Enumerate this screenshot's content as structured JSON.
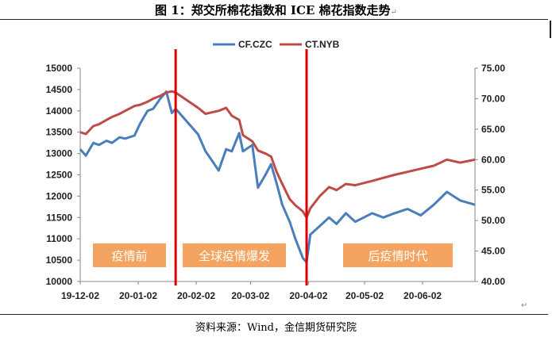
{
  "title": "图 1：郑交所棉花指数和 ICE 棉花指数走势",
  "mark": "↵",
  "source": "资料来源：Wind，金信期货研究院",
  "end_mark": "↵",
  "phases": [
    "疫情前",
    "全球疫情爆发",
    "后疫情时代"
  ],
  "colors": {
    "czc": "#4a7ebb",
    "nyb": "#be4b48",
    "phase_box": "#f4a460",
    "divider": "#e00000"
  },
  "chart_data": {
    "type": "line",
    "x_ticks": [
      "19-12-02",
      "20-01-02",
      "20-02-02",
      "20-03-02",
      "20-04-02",
      "20-05-02",
      "20-06-02"
    ],
    "y_left": {
      "min": 10000,
      "max": 15000,
      "step": 500,
      "ticks": [
        "15000",
        "14500",
        "14000",
        "13500",
        "13000",
        "12500",
        "12000",
        "11500",
        "11000",
        "10500",
        "10000"
      ]
    },
    "y_right": {
      "min": 40,
      "max": 75,
      "step": 5,
      "ticks": [
        "75.00",
        "70.00",
        "65.00",
        "60.00",
        "55.00",
        "50.00",
        "45.00",
        "40.00"
      ]
    },
    "dividers": [
      "2020-01-22",
      "2020-04-01"
    ],
    "series": [
      {
        "name": "CF.CZC",
        "axis": "left",
        "points": [
          [
            "2019-12-02",
            13100
          ],
          [
            "2019-12-05",
            12950
          ],
          [
            "2019-12-09",
            13250
          ],
          [
            "2019-12-12",
            13200
          ],
          [
            "2019-12-16",
            13300
          ],
          [
            "2019-12-19",
            13250
          ],
          [
            "2019-12-23",
            13380
          ],
          [
            "2019-12-26",
            13350
          ],
          [
            "2019-12-31",
            13420
          ],
          [
            "2020-01-03",
            13700
          ],
          [
            "2020-01-07",
            14000
          ],
          [
            "2020-01-10",
            14050
          ],
          [
            "2020-01-14",
            14300
          ],
          [
            "2020-01-17",
            14450
          ],
          [
            "2020-01-20",
            13950
          ],
          [
            "2020-01-22",
            14050
          ],
          [
            "2020-02-03",
            13450
          ],
          [
            "2020-02-07",
            13050
          ],
          [
            "2020-02-11",
            12800
          ],
          [
            "2020-02-14",
            12600
          ],
          [
            "2020-02-18",
            13100
          ],
          [
            "2020-02-21",
            13050
          ],
          [
            "2020-02-25",
            13480
          ],
          [
            "2020-02-27",
            13050
          ],
          [
            "2020-03-03",
            13200
          ],
          [
            "2020-03-06",
            12200
          ],
          [
            "2020-03-10",
            12500
          ],
          [
            "2020-03-13",
            12750
          ],
          [
            "2020-03-16",
            12300
          ],
          [
            "2020-03-19",
            11800
          ],
          [
            "2020-03-23",
            11400
          ],
          [
            "2020-03-26",
            11000
          ],
          [
            "2020-03-30",
            10550
          ],
          [
            "2020-04-01",
            10450
          ],
          [
            "2020-04-03",
            11100
          ],
          [
            "2020-04-08",
            11300
          ],
          [
            "2020-04-13",
            11500
          ],
          [
            "2020-04-17",
            11350
          ],
          [
            "2020-04-22",
            11600
          ],
          [
            "2020-04-27",
            11400
          ],
          [
            "2020-05-06",
            11600
          ],
          [
            "2020-05-12",
            11500
          ],
          [
            "2020-05-18",
            11600
          ],
          [
            "2020-05-25",
            11700
          ],
          [
            "2020-06-01",
            11550
          ],
          [
            "2020-06-08",
            11800
          ],
          [
            "2020-06-15",
            12100
          ],
          [
            "2020-06-22",
            11900
          ],
          [
            "2020-06-30",
            11800
          ]
        ]
      },
      {
        "name": "CT.NYB",
        "axis": "right",
        "points": [
          [
            "2019-12-02",
            64.5
          ],
          [
            "2019-12-05",
            64.2
          ],
          [
            "2019-12-09",
            65.5
          ],
          [
            "2019-12-12",
            65.8
          ],
          [
            "2019-12-16",
            66.5
          ],
          [
            "2019-12-19",
            67.0
          ],
          [
            "2019-12-23",
            67.5
          ],
          [
            "2019-12-26",
            68.0
          ],
          [
            "2019-12-31",
            68.8
          ],
          [
            "2020-01-03",
            69.0
          ],
          [
            "2020-01-07",
            69.5
          ],
          [
            "2020-01-10",
            70.0
          ],
          [
            "2020-01-14",
            70.5
          ],
          [
            "2020-01-17",
            71.0
          ],
          [
            "2020-01-20",
            71.2
          ],
          [
            "2020-01-22",
            71.0
          ],
          [
            "2020-02-03",
            68.5
          ],
          [
            "2020-02-07",
            67.5
          ],
          [
            "2020-02-11",
            67.8
          ],
          [
            "2020-02-14",
            68.0
          ],
          [
            "2020-02-18",
            68.5
          ],
          [
            "2020-02-21",
            67.2
          ],
          [
            "2020-02-25",
            66.5
          ],
          [
            "2020-02-27",
            64.0
          ],
          [
            "2020-03-03",
            63.0
          ],
          [
            "2020-03-06",
            61.5
          ],
          [
            "2020-03-10",
            61.0
          ],
          [
            "2020-03-13",
            60.5
          ],
          [
            "2020-03-16",
            58.0
          ],
          [
            "2020-03-19",
            56.0
          ],
          [
            "2020-03-23",
            53.5
          ],
          [
            "2020-03-26",
            52.5
          ],
          [
            "2020-03-30",
            51.5
          ],
          [
            "2020-04-01",
            50.5
          ],
          [
            "2020-04-03",
            52.0
          ],
          [
            "2020-04-08",
            54.0
          ],
          [
            "2020-04-13",
            55.5
          ],
          [
            "2020-04-17",
            55.0
          ],
          [
            "2020-04-22",
            56.0
          ],
          [
            "2020-04-27",
            55.8
          ],
          [
            "2020-05-06",
            56.5
          ],
          [
            "2020-05-12",
            57.0
          ],
          [
            "2020-05-18",
            57.5
          ],
          [
            "2020-05-25",
            58.0
          ],
          [
            "2020-06-01",
            58.5
          ],
          [
            "2020-06-08",
            59.0
          ],
          [
            "2020-06-15",
            60.0
          ],
          [
            "2020-06-22",
            59.5
          ],
          [
            "2020-06-30",
            60.0
          ]
        ]
      }
    ]
  }
}
